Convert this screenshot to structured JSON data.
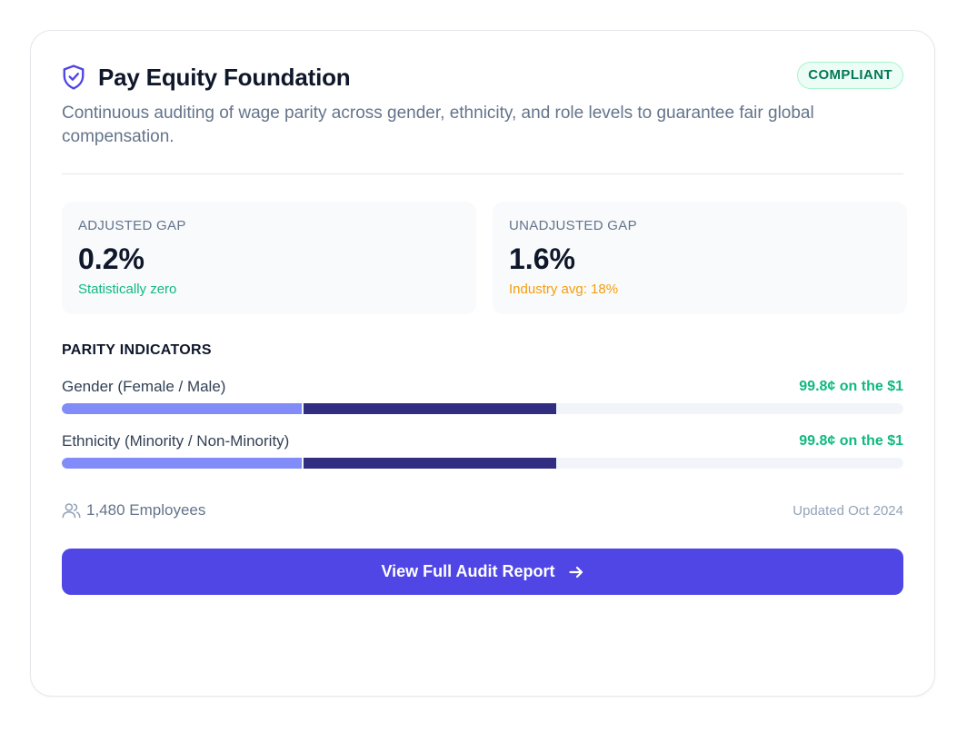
{
  "card": {
    "title": "Pay Equity Foundation",
    "icon": "shield-check-icon",
    "badge": "COMPLIANT",
    "description": "Continuous auditing of wage parity across gender, ethnicity, and role levels to guarantee fair global compensation."
  },
  "stats": [
    {
      "label": "ADJUSTED GAP",
      "value": "0.2%",
      "note": "Statistically zero",
      "note_color": "#10b981"
    },
    {
      "label": "UNADJUSTED GAP",
      "value": "1.6%",
      "note": "Industry avg: 18%",
      "note_color": "#f59e0b"
    }
  ],
  "parity": {
    "title": "PARITY INDICATORS",
    "indicators": [
      {
        "label": "Gender (Female / Male)",
        "value": "99.8¢ on the $1",
        "segment_a": 0.285,
        "segment_b": 0.3
      },
      {
        "label": "Ethnicity (Minority / Non-Minority)",
        "value": "99.8¢ on the $1",
        "segment_a": 0.285,
        "segment_b": 0.3
      }
    ]
  },
  "footer": {
    "employees": "1,480 Employees",
    "employees_icon": "users-icon",
    "updated": "Updated Oct 2024"
  },
  "cta": {
    "label": "View Full Audit Report",
    "icon": "arrow-right-icon"
  },
  "colors": {
    "accent": "#4f46e5",
    "success": "#10b981",
    "warning": "#f59e0b",
    "bar_light": "#818cf8",
    "bar_dark": "#312e81"
  }
}
